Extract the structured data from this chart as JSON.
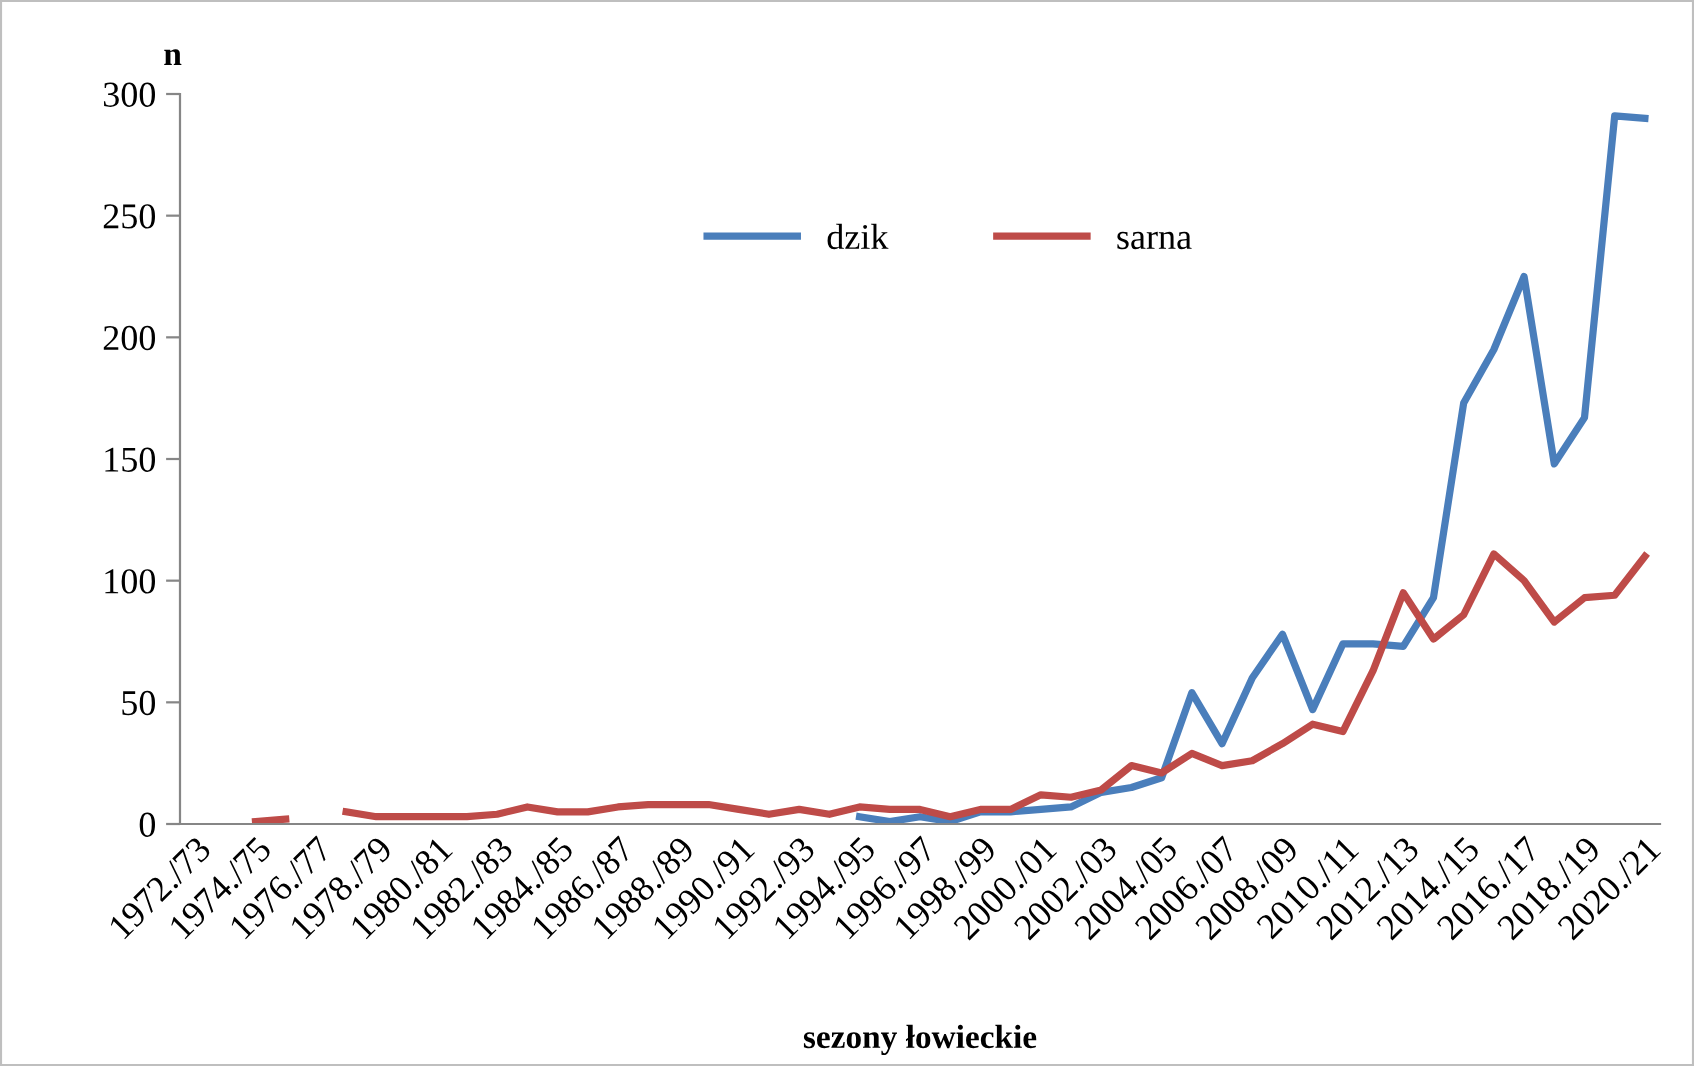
{
  "chart_data": {
    "type": "line",
    "xlabel": "sezony łowieckie",
    "ylabel": "n",
    "categories": [
      "1972./73",
      null,
      "1974./75",
      null,
      "1976./77",
      null,
      "1978./79",
      null,
      "1980./81",
      null,
      "1982./83",
      null,
      "1984./85",
      null,
      "1986./87",
      null,
      "1988./89",
      null,
      "1990./91",
      null,
      "1992./93",
      null,
      "1994./95",
      null,
      "1996./97",
      null,
      "1998./99",
      null,
      "2000./01",
      null,
      "2002./03",
      null,
      "2004./05",
      null,
      "2006./07",
      null,
      "2008./09",
      null,
      "2010./11",
      null,
      "2012./13",
      null,
      "2014./15",
      null,
      "2016./17",
      null,
      "2018./19",
      null,
      "2020./21"
    ],
    "series": [
      {
        "name": "dzik",
        "color": "#4a7ebb",
        "values": [
          null,
          null,
          null,
          null,
          null,
          null,
          null,
          null,
          null,
          null,
          null,
          null,
          null,
          null,
          null,
          null,
          null,
          null,
          null,
          null,
          null,
          null,
          3,
          1,
          3,
          1,
          5,
          5,
          6,
          7,
          13,
          15,
          19,
          54,
          33,
          60,
          78,
          47,
          74,
          74,
          73,
          93,
          173,
          195,
          225,
          148,
          167,
          291,
          290
        ]
      },
      {
        "name": "sarna",
        "color": "#be4b48",
        "values": [
          null,
          null,
          1,
          2,
          null,
          5,
          3,
          3,
          3,
          3,
          4,
          7,
          5,
          5,
          7,
          8,
          8,
          8,
          6,
          4,
          6,
          4,
          7,
          6,
          6,
          3,
          6,
          6,
          12,
          11,
          14,
          24,
          21,
          29,
          24,
          26,
          33,
          41,
          38,
          63,
          95,
          76,
          86,
          111,
          100,
          83,
          93,
          94,
          110
        ]
      }
    ],
    "ylim": [
      0,
      300
    ],
    "yticks": [
      0,
      50,
      100,
      150,
      200,
      250,
      300
    ],
    "grid": false,
    "legend": "top",
    "marker": "none",
    "line_style": "solid"
  }
}
